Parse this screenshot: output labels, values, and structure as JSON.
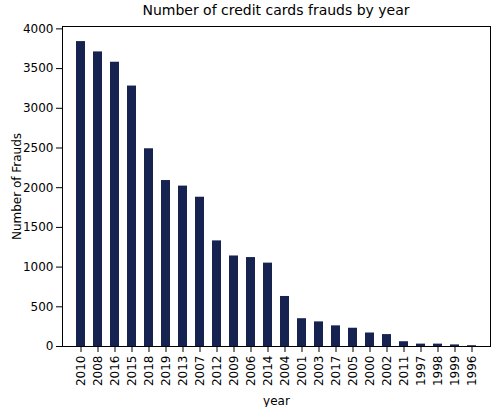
{
  "chart_data": {
    "type": "bar",
    "title": "Number of credit cards frauds by year",
    "x_label": "year",
    "y_label": "Number of Frauds",
    "categories": [
      "2010",
      "2008",
      "2016",
      "2015",
      "2018",
      "2019",
      "2013",
      "2007",
      "2012",
      "2009",
      "2006",
      "2014",
      "2004",
      "2001",
      "2003",
      "2017",
      "2005",
      "2000",
      "2002",
      "2011",
      "1997",
      "1998",
      "1999",
      "1996"
    ],
    "values": [
      3840,
      3710,
      3580,
      3280,
      2490,
      2090,
      2020,
      1880,
      1330,
      1140,
      1120,
      1050,
      630,
      350,
      310,
      260,
      230,
      170,
      150,
      60,
      30,
      30,
      20,
      10
    ],
    "color": "#162250",
    "ylim": [
      0,
      4030
    ],
    "yticks": [
      0,
      500,
      1000,
      1500,
      2000,
      2500,
      3000,
      3500,
      4000
    ],
    "grid": false
  }
}
